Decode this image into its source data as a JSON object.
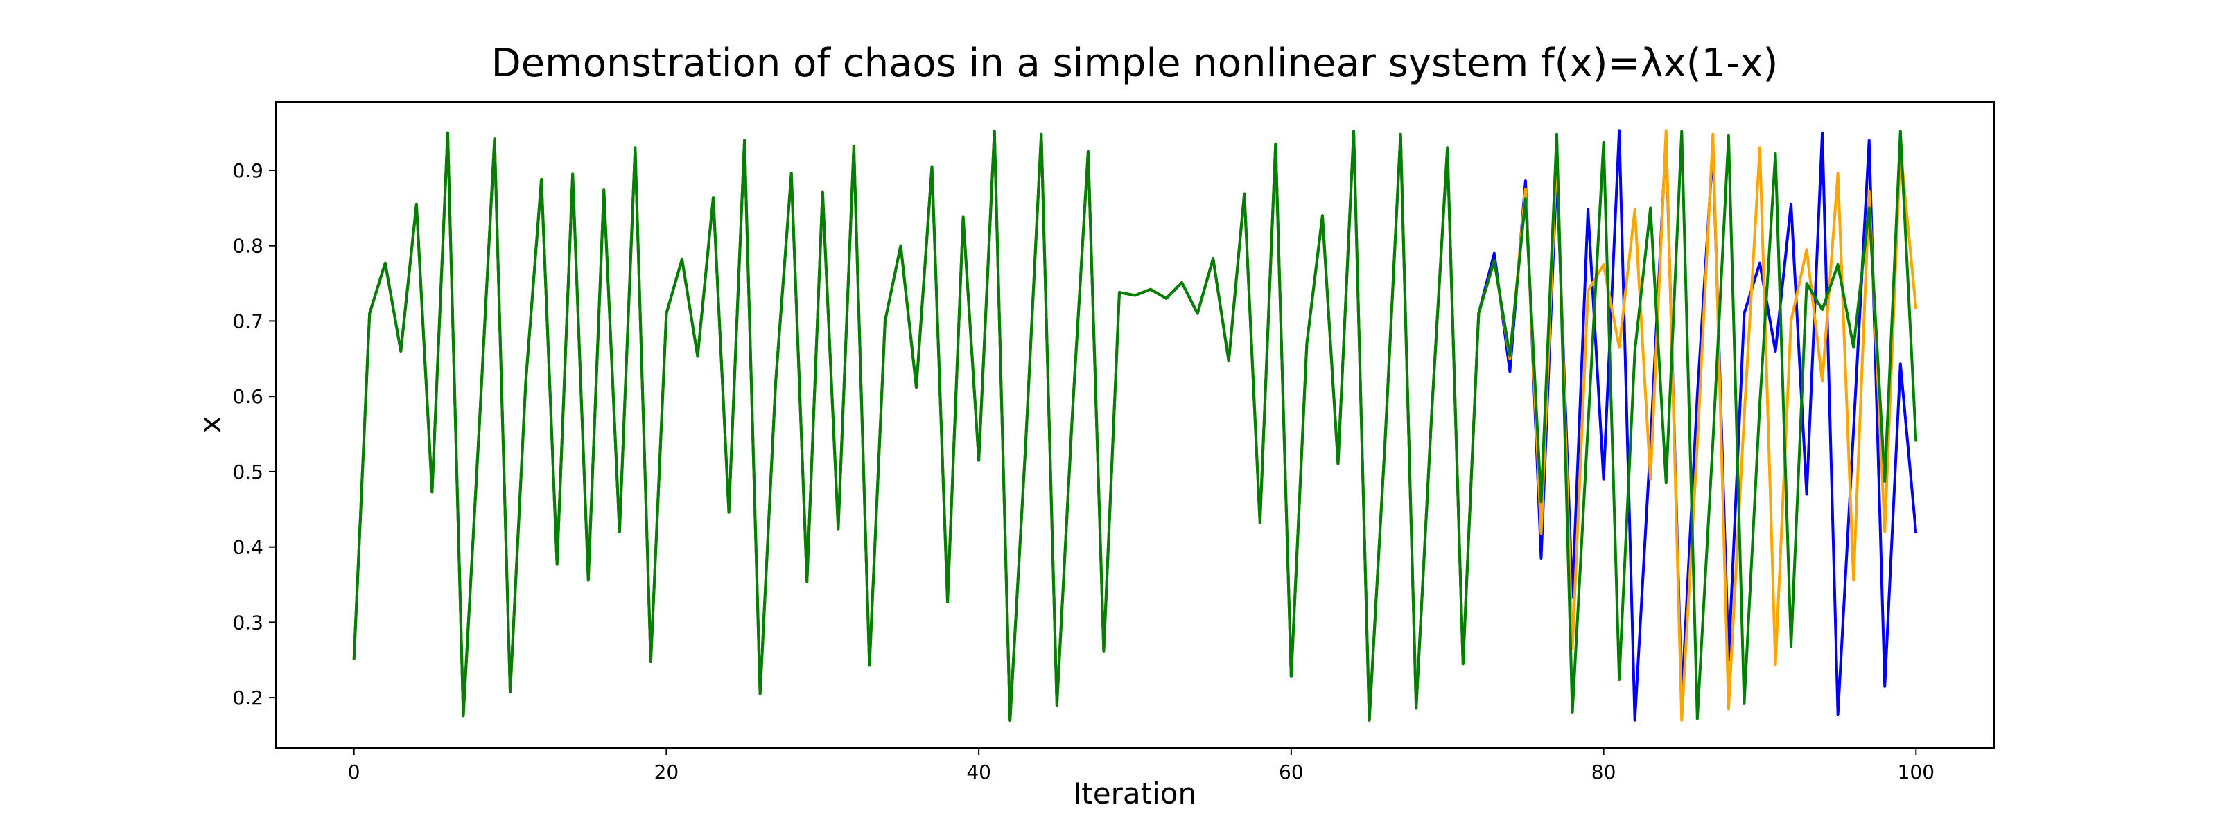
{
  "chart_data": {
    "type": "line",
    "title": "Demonstration of chaos in a simple nonlinear system f(x)=λx(1-x)",
    "x_label": "Iteration",
    "y_label": "x",
    "xlim": [
      -5,
      105
    ],
    "xticks": [
      0,
      20,
      40,
      60,
      80,
      100
    ],
    "ylim": [
      0.133,
      0.991
    ],
    "yticks": [
      0.2,
      0.3,
      0.4,
      0.5,
      0.6,
      0.7,
      0.8,
      0.9
    ],
    "x": [
      0,
      1,
      2,
      3,
      4,
      5,
      6,
      7,
      8,
      9,
      10,
      11,
      12,
      13,
      14,
      15,
      16,
      17,
      18,
      19,
      20,
      21,
      22,
      23,
      24,
      25,
      26,
      27,
      28,
      29,
      30,
      31,
      32,
      33,
      34,
      35,
      36,
      37,
      38,
      39,
      40,
      41,
      42,
      43,
      44,
      45,
      46,
      47,
      48,
      49,
      50,
      51,
      52,
      53,
      54,
      55,
      56,
      57,
      58,
      59,
      60,
      61,
      62,
      63,
      64,
      65,
      66,
      67,
      68,
      69,
      70,
      71,
      72,
      73,
      74,
      75,
      76,
      77,
      78,
      79,
      80,
      81,
      82,
      83,
      84,
      85,
      86,
      87,
      88,
      89,
      90,
      91,
      92,
      93,
      94,
      95,
      96,
      97,
      98,
      99,
      100
    ],
    "series": [
      {
        "color": "#0000ff",
        "values": [
          0.25,
          0.71,
          0.777,
          0.66,
          0.855,
          0.473,
          0.95,
          0.176,
          0.551,
          0.942,
          0.208,
          0.62,
          0.888,
          0.377,
          0.895,
          0.356,
          0.874,
          0.42,
          0.93,
          0.248,
          0.71,
          0.782,
          0.653,
          0.864,
          0.446,
          0.94,
          0.205,
          0.62,
          0.896,
          0.354,
          0.871,
          0.424,
          0.932,
          0.243,
          0.7,
          0.8,
          0.612,
          0.905,
          0.327,
          0.838,
          0.515,
          0.952,
          0.17,
          0.536,
          0.948,
          0.19,
          0.58,
          0.925,
          0.262,
          0.738,
          0.734,
          0.742,
          0.73,
          0.751,
          0.71,
          0.783,
          0.647,
          0.869,
          0.432,
          0.935,
          0.228,
          0.67,
          0.84,
          0.51,
          0.952,
          0.17,
          0.536,
          0.948,
          0.186,
          0.58,
          0.93,
          0.245,
          0.71,
          0.79,
          0.633,
          0.886,
          0.385,
          0.9,
          0.333,
          0.848,
          0.49,
          0.953,
          0.17,
          0.536,
          0.945,
          0.197,
          0.601,
          0.93,
          0.25,
          0.71,
          0.777,
          0.66,
          0.855,
          0.47,
          0.95,
          0.178,
          0.555,
          0.94,
          0.215,
          0.643,
          0.418
        ]
      },
      {
        "color": "#ffa500",
        "values": [
          0.25,
          0.71,
          0.777,
          0.66,
          0.855,
          0.473,
          0.95,
          0.176,
          0.551,
          0.942,
          0.208,
          0.62,
          0.888,
          0.377,
          0.895,
          0.356,
          0.874,
          0.42,
          0.93,
          0.248,
          0.71,
          0.782,
          0.653,
          0.864,
          0.446,
          0.94,
          0.205,
          0.62,
          0.896,
          0.354,
          0.871,
          0.424,
          0.932,
          0.243,
          0.7,
          0.8,
          0.612,
          0.905,
          0.327,
          0.838,
          0.515,
          0.952,
          0.17,
          0.536,
          0.948,
          0.19,
          0.58,
          0.925,
          0.262,
          0.738,
          0.734,
          0.742,
          0.73,
          0.751,
          0.71,
          0.783,
          0.647,
          0.869,
          0.432,
          0.935,
          0.228,
          0.67,
          0.84,
          0.51,
          0.952,
          0.17,
          0.536,
          0.948,
          0.186,
          0.58,
          0.93,
          0.245,
          0.71,
          0.78,
          0.65,
          0.875,
          0.418,
          0.925,
          0.265,
          0.74,
          0.775,
          0.665,
          0.848,
          0.49,
          0.953,
          0.17,
          0.536,
          0.948,
          0.185,
          0.573,
          0.93,
          0.244,
          0.7,
          0.795,
          0.62,
          0.896,
          0.356,
          0.872,
          0.42,
          0.93,
          0.716
        ]
      },
      {
        "color": "#008000",
        "values": [
          0.25,
          0.71,
          0.777,
          0.66,
          0.855,
          0.473,
          0.95,
          0.176,
          0.551,
          0.942,
          0.208,
          0.62,
          0.888,
          0.377,
          0.895,
          0.356,
          0.874,
          0.42,
          0.93,
          0.248,
          0.71,
          0.782,
          0.653,
          0.864,
          0.446,
          0.94,
          0.205,
          0.62,
          0.896,
          0.354,
          0.871,
          0.424,
          0.932,
          0.243,
          0.7,
          0.8,
          0.612,
          0.905,
          0.327,
          0.838,
          0.515,
          0.952,
          0.17,
          0.536,
          0.948,
          0.19,
          0.58,
          0.925,
          0.262,
          0.738,
          0.734,
          0.742,
          0.73,
          0.751,
          0.71,
          0.783,
          0.647,
          0.869,
          0.432,
          0.935,
          0.228,
          0.67,
          0.84,
          0.51,
          0.952,
          0.17,
          0.536,
          0.948,
          0.186,
          0.58,
          0.93,
          0.245,
          0.71,
          0.78,
          0.654,
          0.862,
          0.46,
          0.948,
          0.18,
          0.56,
          0.937,
          0.224,
          0.66,
          0.85,
          0.485,
          0.952,
          0.172,
          0.54,
          0.946,
          0.192,
          0.59,
          0.922,
          0.268,
          0.75,
          0.715,
          0.775,
          0.665,
          0.85,
          0.487,
          0.952,
          0.54
        ]
      }
    ]
  }
}
